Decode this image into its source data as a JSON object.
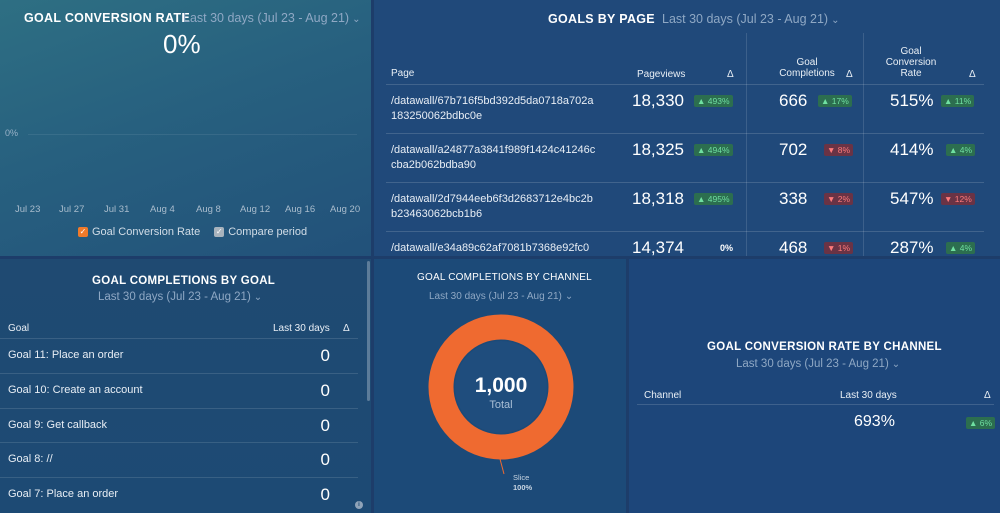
{
  "goal_conversion_rate": {
    "title": "GOAL CONVERSION RATE",
    "date_range": "Last 30 days (Jul 23 - Aug 21)",
    "value": "0%",
    "y_tick": "0%",
    "x_ticks": [
      "Jul 23",
      "Jul 27",
      "Jul 31",
      "Aug 4",
      "Aug 8",
      "Aug 12",
      "Aug 16",
      "Aug 20"
    ],
    "legend": {
      "primary": "Goal Conversion Rate",
      "compare": "Compare period"
    },
    "colors": {
      "primary": "#f07a2a",
      "compare": "#a8b3bd"
    }
  },
  "goals_by_page": {
    "title": "GOALS BY PAGE",
    "date_range": "Last 30 days (Jul 23 - Aug 21)",
    "headers": {
      "page": "Page",
      "pageviews": "Pageviews",
      "delta": "Δ",
      "completions_l1": "Goal",
      "completions_l2": "Completions",
      "rate_l1": "Goal",
      "rate_l2": "Conversion",
      "rate_l3": "Rate"
    },
    "rows": [
      {
        "page": "/datawall/67b716f5bd392d5da0718a702a183250062bdbc0e",
        "pageviews": "18,330",
        "pv_delta": "▲ 493%",
        "completions": "666",
        "comp_delta": "▲ 17%",
        "rate": "515%",
        "rate_delta": "▲ 11%"
      },
      {
        "page": "/datawall/a24877a3841f989f1424c41246ccba2b062bdba90",
        "pageviews": "18,325",
        "pv_delta": "▲ 494%",
        "completions": "702",
        "comp_delta": "▼ 8%",
        "rate": "414%",
        "rate_delta": "▲ 4%"
      },
      {
        "page": "/datawall/2d7944eeb6f3d2683712e4bc2bb23463062bcb1b6",
        "pageviews": "18,318",
        "pv_delta": "▲ 495%",
        "completions": "338",
        "comp_delta": "▼ 2%",
        "rate": "547%",
        "rate_delta": "▼ 12%"
      },
      {
        "page": "/datawall/e34a89c62af7081b7368e92fc0",
        "pageviews": "14,374",
        "pv_delta": "0%",
        "completions": "468",
        "comp_delta": "▼ 1%",
        "rate": "287%",
        "rate_delta": "▲ 4%"
      }
    ]
  },
  "goal_completions_by_goal": {
    "title": "GOAL COMPLETIONS BY GOAL",
    "date_range": "Last 30 days (Jul 23 - Aug 21)",
    "headers": {
      "goal": "Goal",
      "period": "Last 30 days",
      "delta": "Δ"
    },
    "rows": [
      {
        "goal": "Goal 11: Place an order",
        "value": "0"
      },
      {
        "goal": "Goal 10: Create an account",
        "value": "0"
      },
      {
        "goal": "Goal 9: Get callback",
        "value": "0"
      },
      {
        "goal": "Goal 8: //",
        "value": "0"
      },
      {
        "goal": "Goal 7: Place an order",
        "value": "0"
      }
    ],
    "info_icon": "info-icon"
  },
  "goal_completions_by_channel": {
    "title": "GOAL COMPLETIONS BY CHANNEL",
    "date_range": "Last 30 days (Jul 23 - Aug 21)",
    "total_value": "1,000",
    "total_label": "Total",
    "slice_label": "Slice",
    "slice_percent": "100%",
    "colors": {
      "ring": "#ef6a30",
      "center": "#1f4d7d"
    }
  },
  "goal_conversion_rate_by_channel": {
    "title": "GOAL CONVERSION RATE BY CHANNEL",
    "date_range": "Last 30 days (Jul 23 - Aug 21)",
    "headers": {
      "channel": "Channel",
      "period": "Last 30 days",
      "delta": "Δ"
    },
    "value": "693%",
    "delta": "▲ 6%"
  }
}
